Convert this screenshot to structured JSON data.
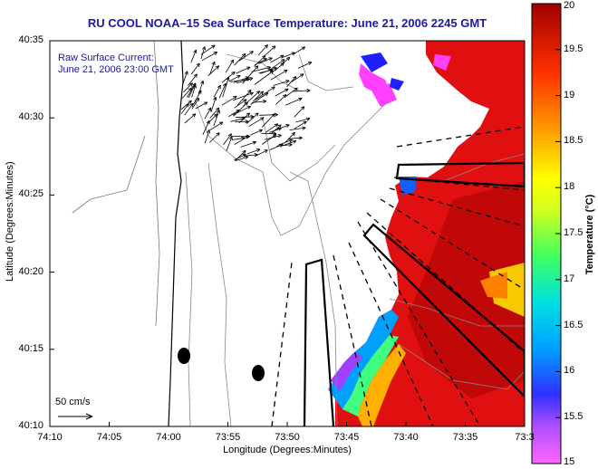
{
  "title": "RU COOL   NOAA–15  Sea Surface Temperature:  June 21, 2006 2245 GMT",
  "annotation": {
    "line1": "Raw Surface Current:",
    "line2": "June 21, 2006 23:00 GMT"
  },
  "scale_label": "50 cm/s",
  "axes": {
    "x_title": "Longitude (Degrees:Minutes)",
    "y_title": "Latitude (Degrees:Minutes)",
    "x_ticks": [
      "74:10",
      "74:05",
      "74:00",
      "73:55",
      "73:50",
      "73:45",
      "73:40",
      "73:35",
      "73:3"
    ],
    "y_ticks": [
      "40:35",
      "40:30",
      "40:25",
      "40:20",
      "40:15",
      "40:10"
    ]
  },
  "colorbar": {
    "title": "Temperature (°C)",
    "ticks": [
      "20",
      "19.5",
      "19",
      "18.5",
      "18",
      "17.5",
      "17",
      "16.5",
      "16",
      "15.5",
      "15"
    ],
    "range": [
      15,
      20
    ]
  },
  "colors": {
    "warm": "#e01010",
    "hot": "#b00000",
    "cold": "#2020ff",
    "min": "#ff30ff",
    "title": "#1a1aa8"
  }
}
